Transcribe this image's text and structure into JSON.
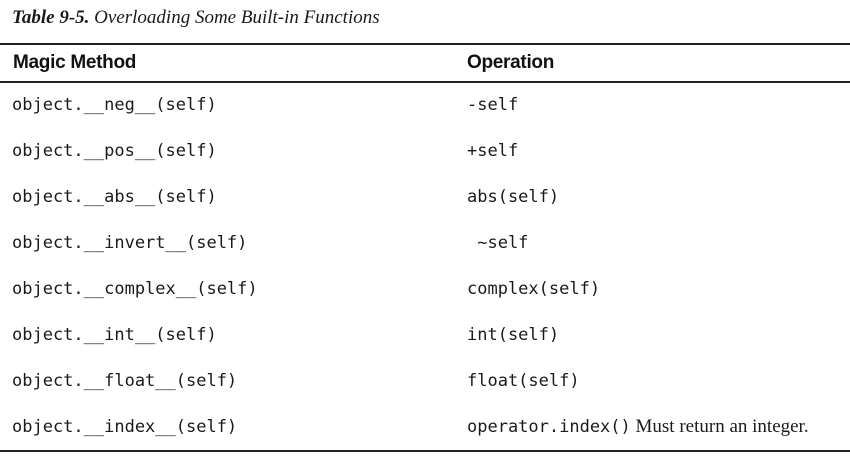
{
  "caption": {
    "label": "Table 9-5.",
    "title": "Overloading Some Built-in Functions"
  },
  "table": {
    "headers": [
      "Magic Method",
      "Operation"
    ],
    "rows": [
      {
        "method": "object.__neg__(self)",
        "operation": "-self",
        "note": ""
      },
      {
        "method": "object.__pos__(self)",
        "operation": "+self",
        "note": ""
      },
      {
        "method": "object.__abs__(self)",
        "operation": "abs(self)",
        "note": ""
      },
      {
        "method": "object.__invert__(self)",
        "operation": " ~self",
        "note": ""
      },
      {
        "method": "object.__complex__(self)",
        "operation": "complex(self)",
        "note": ""
      },
      {
        "method": "object.__int__(self)",
        "operation": "int(self)",
        "note": ""
      },
      {
        "method": "object.__float__(self)",
        "operation": "float(self)",
        "note": ""
      },
      {
        "method": "object.__index__(self)",
        "operation": "operator.index()",
        "note": " Must return an integer."
      }
    ]
  }
}
